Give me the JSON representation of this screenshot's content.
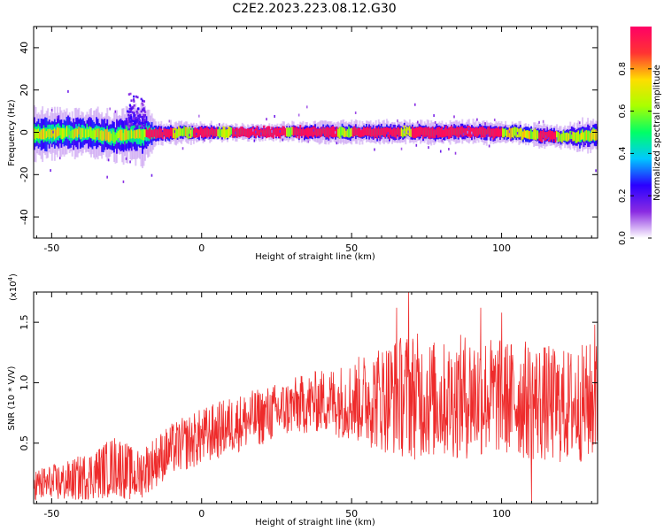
{
  "title": "C2E2.2023.223.08.12.G30",
  "chart_data": [
    {
      "type": "heatmap",
      "xlabel": "Height of straight line (km)",
      "ylabel": "Frequency (Hz)",
      "xlim": [
        -56,
        132
      ],
      "ylim": [
        -50,
        50
      ],
      "xticks": [
        -50,
        0,
        50,
        100
      ],
      "xtick_labels": [
        "-50",
        "0",
        "50",
        "100"
      ],
      "yticks": [
        -40,
        -20,
        0,
        20,
        40
      ],
      "ytick_labels": [
        "-40",
        "-20",
        "0",
        "20",
        "40"
      ],
      "colorbar": {
        "label": "Normalized spectral amplitude",
        "range": [
          0,
          1
        ],
        "ticks": [
          0.0,
          0.2,
          0.4,
          0.6,
          0.8
        ],
        "tick_labels": [
          "0.0",
          "0.2",
          "0.4",
          "0.6",
          "0.8"
        ],
        "colormap": [
          "#ffffff",
          "#8a2be2",
          "#2a00ff",
          "#00c8ff",
          "#00ff66",
          "#aaff00",
          "#ffdd00",
          "#ff3333",
          "#ff0066"
        ]
      },
      "center_track": [
        {
          "x": -56,
          "y": -1
        },
        {
          "x": -40,
          "y": 0
        },
        {
          "x": -30,
          "y": -2
        },
        {
          "x": -20,
          "y": -0.5
        },
        {
          "x": 0,
          "y": 0
        },
        {
          "x": 20,
          "y": 0
        },
        {
          "x": 40,
          "y": 0
        },
        {
          "x": 60,
          "y": 0
        },
        {
          "x": 80,
          "y": 0
        },
        {
          "x": 100,
          "y": 0
        },
        {
          "x": 110,
          "y": -1
        },
        {
          "x": 118,
          "y": -2
        },
        {
          "x": 125,
          "y": -2
        },
        {
          "x": 132,
          "y": -1
        }
      ],
      "spread_hz": [
        {
          "x": -56,
          "s": 7
        },
        {
          "x": -40,
          "s": 6
        },
        {
          "x": -25,
          "s": 7
        },
        {
          "x": -20,
          "s": 8
        },
        {
          "x": -15,
          "s": 3
        },
        {
          "x": 20,
          "s": 2
        },
        {
          "x": 45,
          "s": 3
        },
        {
          "x": 75,
          "s": 3
        },
        {
          "x": 100,
          "s": 3
        },
        {
          "x": 120,
          "s": 3
        },
        {
          "x": 132,
          "s": 5
        }
      ],
      "peak_segments": [
        {
          "x0": -19,
          "x1": -10
        },
        {
          "x0": -3,
          "x1": 5
        },
        {
          "x0": 10,
          "x1": 28
        },
        {
          "x0": 30,
          "x1": 45
        },
        {
          "x0": 50,
          "x1": 66
        },
        {
          "x0": 70,
          "x1": 100
        },
        {
          "x0": 112,
          "x1": 118
        }
      ],
      "high_freq_blob": {
        "x0": -25,
        "x1": -19,
        "y_max": 20
      }
    },
    {
      "type": "line",
      "xlabel": "Height of straight line (km)",
      "ylabel": "SNR (10 * V/V)",
      "y_multiplier": "(x10",
      "y_multiplier_exp": "4",
      "y_multiplier_close": ")",
      "xlim": [
        -56,
        132
      ],
      "ylim": [
        0,
        1.75
      ],
      "xticks": [
        -50,
        0,
        50,
        100
      ],
      "xtick_labels": [
        "-50",
        "0",
        "50",
        "100"
      ],
      "yticks": [
        0.5,
        1.0,
        1.5
      ],
      "ytick_labels": [
        "0.5",
        "1.0",
        "1.5"
      ],
      "color": "#ee2b2b",
      "envelope": [
        {
          "x": -56,
          "mean": 0.15,
          "amp": 0.12
        },
        {
          "x": -45,
          "mean": 0.18,
          "amp": 0.14
        },
        {
          "x": -35,
          "mean": 0.25,
          "amp": 0.18
        },
        {
          "x": -28,
          "mean": 0.32,
          "amp": 0.22
        },
        {
          "x": -22,
          "mean": 0.22,
          "amp": 0.18
        },
        {
          "x": -18,
          "mean": 0.3,
          "amp": 0.18
        },
        {
          "x": -10,
          "mean": 0.45,
          "amp": 0.18
        },
        {
          "x": 0,
          "mean": 0.55,
          "amp": 0.2
        },
        {
          "x": 10,
          "mean": 0.65,
          "amp": 0.2
        },
        {
          "x": 20,
          "mean": 0.72,
          "amp": 0.2
        },
        {
          "x": 30,
          "mean": 0.8,
          "amp": 0.2
        },
        {
          "x": 40,
          "mean": 0.85,
          "amp": 0.22
        },
        {
          "x": 50,
          "mean": 0.85,
          "amp": 0.28
        },
        {
          "x": 60,
          "mean": 0.88,
          "amp": 0.38
        },
        {
          "x": 70,
          "mean": 0.9,
          "amp": 0.45
        },
        {
          "x": 80,
          "mean": 0.85,
          "amp": 0.4
        },
        {
          "x": 90,
          "mean": 0.9,
          "amp": 0.45
        },
        {
          "x": 100,
          "mean": 0.88,
          "amp": 0.4
        },
        {
          "x": 110,
          "mean": 0.85,
          "amp": 0.42
        },
        {
          "x": 120,
          "mean": 0.8,
          "amp": 0.4
        },
        {
          "x": 132,
          "mean": 0.85,
          "amp": 0.42
        }
      ],
      "spikes": [
        {
          "x": 69,
          "y": 1.75
        },
        {
          "x": 65,
          "y": 1.62
        },
        {
          "x": 93,
          "y": 1.62
        },
        {
          "x": 100,
          "y": 1.58
        },
        {
          "x": 131,
          "y": 1.48
        },
        {
          "x": 110,
          "y": 0.0
        }
      ]
    }
  ]
}
